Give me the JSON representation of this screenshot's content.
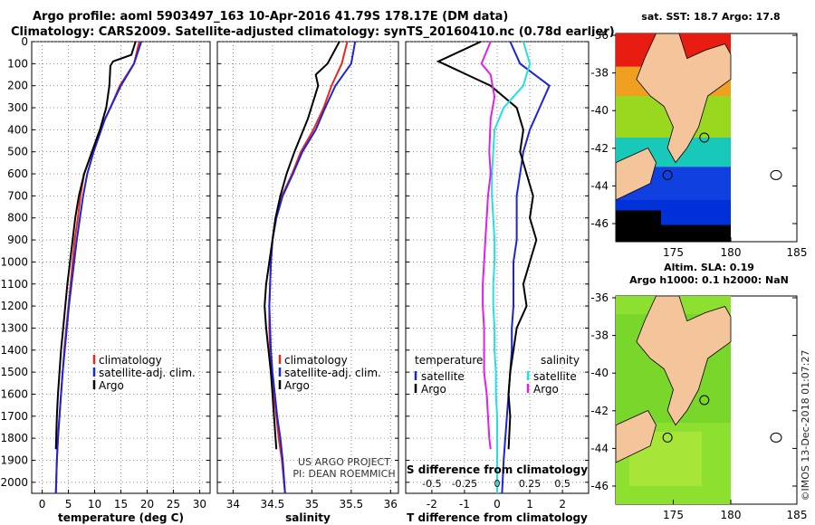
{
  "header": {
    "title_line1": "Argo profile: aoml 5903497_163 10-Apr-2016 41.79S 178.17E (DM data)",
    "title_line2": "Climatology: CARS2009. Satellite-adjusted climatology: synTS_20160410.nc (0.78d earlier)"
  },
  "map_sst": {
    "title": "sat. SST: 18.7 Argo: 17.8"
  },
  "map_sla": {
    "title_line1": "Altim. SLA: 0.19",
    "title_line2": "Argo h1000: 0.1 h2000: NaN"
  },
  "credits": {
    "project": "US ARGO PROJECT",
    "pi": "PI: DEAN ROEMMICH",
    "imos": "©IMOS 13-Dec-2018 01:07:27"
  },
  "colors": {
    "climatology": "#e8281c",
    "satellite": "#1c24d6",
    "argo": "#000000",
    "sat_salinity": "#22e0e8",
    "argo_salinity": "#e020e8"
  },
  "chart_data": [
    {
      "type": "line",
      "xlabel": "temperature (deg C)",
      "xlim": [
        -2,
        32
      ],
      "ylim": [
        2050,
        0
      ],
      "xticks": [
        0,
        5,
        10,
        15,
        20,
        25,
        30
      ],
      "yticks": [
        0,
        100,
        200,
        300,
        400,
        500,
        600,
        700,
        800,
        900,
        1000,
        1100,
        1200,
        1300,
        1400,
        1500,
        1600,
        1700,
        1800,
        1900,
        2000
      ],
      "legend": {
        "position": "lower-right",
        "entries": [
          "climatology",
          "satellite-adj. clim.",
          "Argo"
        ]
      },
      "series": [
        {
          "name": "climatology",
          "color": "#e8281c",
          "x": [
            18.5,
            17.5,
            14.8,
            13.0,
            11.0,
            9.5,
            8.0,
            7.3,
            6.8,
            6.2,
            5.8,
            5.4,
            5.0,
            4.6,
            4.2,
            3.9,
            3.6,
            3.3,
            3.0,
            2.8,
            2.6
          ],
          "y": [
            0,
            100,
            200,
            300,
            400,
            500,
            600,
            700,
            800,
            900,
            1000,
            1100,
            1200,
            1300,
            1400,
            1500,
            1600,
            1700,
            1800,
            1900,
            2050
          ]
        },
        {
          "name": "satellite-adj. clim.",
          "color": "#1c24d6",
          "x": [
            18.9,
            18.2,
            17.5,
            15.0,
            12.0,
            9.8,
            8.6,
            7.8,
            7.2,
            6.6,
            6.1,
            5.6,
            5.1,
            4.7,
            4.3,
            3.9,
            3.6,
            3.3,
            3.0,
            2.8,
            2.6
          ],
          "y": [
            0,
            50,
            100,
            200,
            350,
            500,
            600,
            700,
            800,
            900,
            1000,
            1100,
            1200,
            1300,
            1400,
            1500,
            1600,
            1700,
            1800,
            1900,
            2050
          ]
        },
        {
          "name": "Argo",
          "color": "#000000",
          "x": [
            17.8,
            17.0,
            13.5,
            13.0,
            12.8,
            12.2,
            11.0,
            9.5,
            8.0,
            7.0,
            6.3,
            5.8,
            5.3,
            4.8,
            4.4,
            4.0,
            3.6,
            3.3,
            3.0,
            2.8,
            2.6
          ],
          "y": [
            0,
            60,
            90,
            110,
            200,
            300,
            400,
            500,
            600,
            700,
            800,
            900,
            1000,
            1100,
            1200,
            1300,
            1400,
            1500,
            1600,
            1700,
            1850
          ]
        }
      ]
    },
    {
      "type": "line",
      "xlabel": "salinity",
      "xlim": [
        33.8,
        36.1
      ],
      "ylim": [
        2050,
        0
      ],
      "xticks": [
        34,
        34.5,
        35,
        35.5,
        36
      ],
      "legend": {
        "position": "lower-right",
        "entries": [
          "climatology",
          "satellite-adj. clim.",
          "Argo"
        ]
      },
      "series": [
        {
          "name": "climatology",
          "color": "#e8281c",
          "x": [
            35.45,
            35.38,
            35.25,
            35.15,
            35.02,
            34.86,
            34.75,
            34.62,
            34.54,
            34.5,
            34.48,
            34.47,
            34.46,
            34.46,
            34.47,
            34.48,
            34.52,
            34.55,
            34.58,
            34.62,
            34.66
          ],
          "y": [
            0,
            100,
            200,
            300,
            400,
            500,
            600,
            700,
            800,
            900,
            1000,
            1100,
            1200,
            1300,
            1400,
            1500,
            1600,
            1700,
            1800,
            1900,
            2050
          ]
        },
        {
          "name": "satellite-adj. clim.",
          "color": "#1c24d6",
          "x": [
            35.55,
            35.5,
            35.3,
            35.17,
            35.05,
            34.88,
            34.76,
            34.63,
            34.55,
            34.5,
            34.48,
            34.47,
            34.46,
            34.47,
            34.48,
            34.5,
            34.53,
            34.56,
            34.6,
            34.63,
            34.66
          ],
          "y": [
            0,
            100,
            200,
            300,
            400,
            500,
            600,
            700,
            800,
            900,
            1000,
            1100,
            1200,
            1300,
            1400,
            1500,
            1600,
            1700,
            1800,
            1900,
            2050
          ]
        },
        {
          "name": "Argo",
          "color": "#000000",
          "x": [
            35.35,
            35.2,
            35.05,
            35.08,
            34.95,
            34.78,
            34.68,
            34.6,
            34.54,
            34.5,
            34.46,
            34.42,
            34.4,
            34.42,
            34.45,
            34.48,
            34.5,
            34.52,
            34.54,
            34.55
          ],
          "y": [
            0,
            100,
            150,
            200,
            350,
            500,
            600,
            700,
            800,
            900,
            1000,
            1100,
            1200,
            1300,
            1400,
            1500,
            1600,
            1700,
            1800,
            1850
          ]
        }
      ]
    },
    {
      "type": "line",
      "xlabel": "T difference from climatology",
      "xlabel2": "S difference from climatology",
      "xlim": [
        -2.8,
        2.8
      ],
      "ylim": [
        2050,
        0
      ],
      "xticks": [
        -2,
        -1,
        0,
        1,
        2
      ],
      "xticks2": [
        "-0.5",
        "-0.25",
        "0",
        "0.25",
        "0.5"
      ],
      "legend": {
        "position": "lower-center",
        "temperature_header": "temperature",
        "salinity_header": "salinity",
        "temperature_entries": [
          "satellite",
          "Argo"
        ],
        "salinity_entries": [
          "satellite",
          "Argo"
        ]
      },
      "series": [
        {
          "name": "temperature satellite",
          "color": "#1c24d6",
          "x": [
            0.4,
            0.7,
            1.6,
            1.3,
            1.0,
            0.8,
            0.7,
            0.6,
            0.6,
            0.6,
            0.5,
            0.5,
            0.5,
            0.45,
            0.45,
            0.4,
            0.35,
            0.3,
            0.25,
            0.2,
            0.15
          ],
          "y": [
            0,
            100,
            200,
            300,
            400,
            500,
            600,
            700,
            800,
            900,
            1000,
            1100,
            1200,
            1300,
            1400,
            1500,
            1600,
            1700,
            1800,
            1900,
            2050
          ]
        },
        {
          "name": "temperature Argo",
          "color": "#000000",
          "x": [
            -0.5,
            -1.8,
            -1.5,
            -0.2,
            0.6,
            0.8,
            0.7,
            0.9,
            1.1,
            1.0,
            1.2,
            1.0,
            0.8,
            0.9,
            0.6,
            0.5,
            0.4,
            0.35,
            0.4,
            0.35
          ],
          "y": [
            0,
            90,
            110,
            200,
            300,
            400,
            500,
            600,
            700,
            800,
            900,
            1000,
            1100,
            1200,
            1300,
            1400,
            1500,
            1600,
            1700,
            1850
          ]
        },
        {
          "name": "salinity satellite",
          "color": "#22e0e8",
          "x": [
            0.2,
            0.25,
            0.2,
            0.05,
            -0.02,
            -0.03,
            -0.04,
            -0.04,
            -0.03,
            -0.02,
            -0.02,
            -0.03,
            -0.03,
            -0.02,
            -0.02,
            -0.01,
            -0.01,
            0.0,
            0.0,
            0.0,
            0.0
          ],
          "y": [
            0,
            100,
            200,
            300,
            400,
            500,
            600,
            700,
            800,
            900,
            1000,
            1100,
            1200,
            1300,
            1400,
            1500,
            1600,
            1700,
            1800,
            1900,
            2050
          ]
        },
        {
          "name": "salinity Argo",
          "color": "#e020e8",
          "x": [
            -0.05,
            -0.12,
            -0.05,
            -0.02,
            -0.05,
            -0.06,
            -0.05,
            -0.07,
            -0.08,
            -0.09,
            -0.1,
            -0.11,
            -0.11,
            -0.1,
            -0.1,
            -0.1,
            -0.08,
            -0.07,
            -0.06,
            -0.05
          ],
          "y": [
            0,
            100,
            150,
            250,
            350,
            500,
            600,
            700,
            800,
            900,
            1000,
            1100,
            1200,
            1300,
            1400,
            1500,
            1600,
            1700,
            1800,
            1850
          ]
        }
      ]
    }
  ],
  "maps": {
    "lon_ticks": [
      "175",
      "180",
      "185"
    ],
    "lat_ticks": [
      "-36",
      "-38",
      "-40",
      "-42",
      "-44",
      "-46"
    ]
  }
}
